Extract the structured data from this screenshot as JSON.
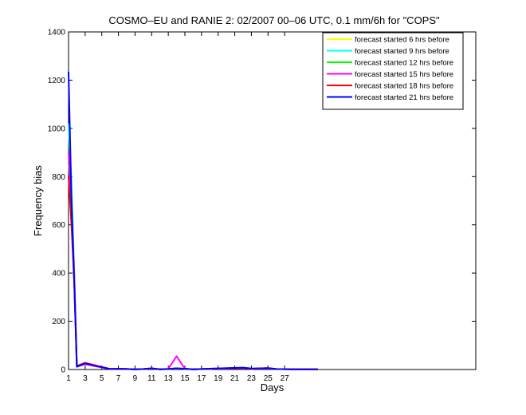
{
  "chart_data": {
    "type": "line",
    "title": "COSMO–EU and RANIE 2: 02/2007 00–06 UTC, 0.1 mm/6h for \"COPS\"",
    "xlabel": "Days",
    "ylabel": "Frequency bias",
    "xlim": [
      1,
      50
    ],
    "ylim": [
      0,
      1400
    ],
    "x_ticks": [
      1,
      3,
      5,
      7,
      9,
      11,
      13,
      15,
      17,
      19,
      21,
      23,
      25,
      27
    ],
    "y_ticks": [
      0,
      200,
      400,
      600,
      800,
      1000,
      1200,
      1400
    ],
    "legend_position": "top-right",
    "grid": false,
    "series": [
      {
        "name": "forecast started 6 hrs before",
        "color": "#ffff00",
        "points": [
          [
            1,
            1000
          ],
          [
            1.35,
            760
          ],
          [
            1.7,
            400
          ],
          [
            2,
            10
          ],
          [
            3,
            25
          ],
          [
            6,
            2
          ],
          [
            7,
            3
          ],
          [
            8,
            2
          ],
          [
            9,
            1
          ],
          [
            10,
            2
          ],
          [
            11,
            4
          ],
          [
            12,
            1
          ],
          [
            13,
            2
          ],
          [
            14,
            5
          ],
          [
            15,
            3
          ],
          [
            16,
            1
          ],
          [
            22,
            7
          ],
          [
            23,
            3
          ],
          [
            25,
            6
          ],
          [
            26,
            2
          ],
          [
            28,
            1
          ],
          [
            31,
            1
          ]
        ]
      },
      {
        "name": "forecast started 9 hrs before",
        "color": "#00ffff",
        "points": [
          [
            1,
            1020
          ],
          [
            1.35,
            780
          ],
          [
            1.7,
            390
          ],
          [
            2,
            10
          ],
          [
            3,
            25
          ],
          [
            6,
            2
          ],
          [
            7,
            3
          ],
          [
            8,
            2
          ],
          [
            9,
            1
          ],
          [
            10,
            2
          ],
          [
            11,
            5
          ],
          [
            12,
            1
          ],
          [
            13,
            2
          ],
          [
            14,
            4
          ],
          [
            15,
            3
          ],
          [
            16,
            1
          ],
          [
            22,
            6
          ],
          [
            23,
            3
          ],
          [
            25,
            5
          ],
          [
            26,
            2
          ],
          [
            28,
            1
          ],
          [
            31,
            1
          ]
        ]
      },
      {
        "name": "forecast started 12 hrs before",
        "color": "#00ff00",
        "points": [
          [
            1,
            860
          ],
          [
            1.35,
            720
          ],
          [
            1.7,
            360
          ],
          [
            2,
            12
          ],
          [
            3,
            25
          ],
          [
            6,
            2
          ],
          [
            7,
            3
          ],
          [
            8,
            2
          ],
          [
            9,
            1
          ],
          [
            10,
            2
          ],
          [
            11,
            4
          ],
          [
            12,
            1
          ],
          [
            13,
            2
          ],
          [
            14,
            5
          ],
          [
            15,
            3
          ],
          [
            16,
            1
          ],
          [
            22,
            7
          ],
          [
            23,
            3
          ],
          [
            25,
            6
          ],
          [
            26,
            2
          ],
          [
            28,
            1
          ],
          [
            31,
            1
          ]
        ]
      },
      {
        "name": "forecast started 15 hrs before",
        "color": "#ff00ff",
        "points": [
          [
            1,
            900
          ],
          [
            1.35,
            700
          ],
          [
            1.7,
            380
          ],
          [
            2,
            12
          ],
          [
            3,
            22
          ],
          [
            6,
            2
          ],
          [
            7,
            3
          ],
          [
            8,
            2
          ],
          [
            9,
            1
          ],
          [
            10,
            2
          ],
          [
            11,
            4
          ],
          [
            12,
            1
          ],
          [
            13,
            3
          ],
          [
            14,
            55
          ],
          [
            15,
            3
          ],
          [
            16,
            1
          ],
          [
            22,
            6
          ],
          [
            23,
            3
          ],
          [
            25,
            5
          ],
          [
            26,
            2
          ],
          [
            28,
            1
          ],
          [
            31,
            1
          ]
        ]
      },
      {
        "name": "forecast started 18 hrs before",
        "color": "#ff0000",
        "points": [
          [
            1,
            800
          ],
          [
            1.35,
            600
          ],
          [
            1.7,
            350
          ],
          [
            2,
            15
          ],
          [
            3,
            28
          ],
          [
            6,
            2
          ],
          [
            7,
            3
          ],
          [
            8,
            2
          ],
          [
            9,
            1
          ],
          [
            10,
            2
          ],
          [
            11,
            4
          ],
          [
            12,
            1
          ],
          [
            13,
            2
          ],
          [
            14,
            5
          ],
          [
            15,
            3
          ],
          [
            16,
            1
          ],
          [
            22,
            7
          ],
          [
            23,
            3
          ],
          [
            25,
            6
          ],
          [
            26,
            2
          ],
          [
            28,
            1
          ],
          [
            31,
            1
          ]
        ]
      },
      {
        "name": "forecast started 21 hrs before",
        "color": "#0000ff",
        "points": [
          [
            1,
            1235
          ],
          [
            1.35,
            700
          ],
          [
            1.7,
            340
          ],
          [
            2,
            12
          ],
          [
            3,
            25
          ],
          [
            6,
            2
          ],
          [
            7,
            3
          ],
          [
            8,
            2
          ],
          [
            9,
            1
          ],
          [
            10,
            2
          ],
          [
            11,
            5
          ],
          [
            12,
            1
          ],
          [
            13,
            2
          ],
          [
            14,
            5
          ],
          [
            15,
            3
          ],
          [
            16,
            1
          ],
          [
            22,
            8
          ],
          [
            23,
            4
          ],
          [
            25,
            6
          ],
          [
            26,
            2
          ],
          [
            28,
            1
          ],
          [
            31,
            1
          ]
        ]
      }
    ]
  }
}
